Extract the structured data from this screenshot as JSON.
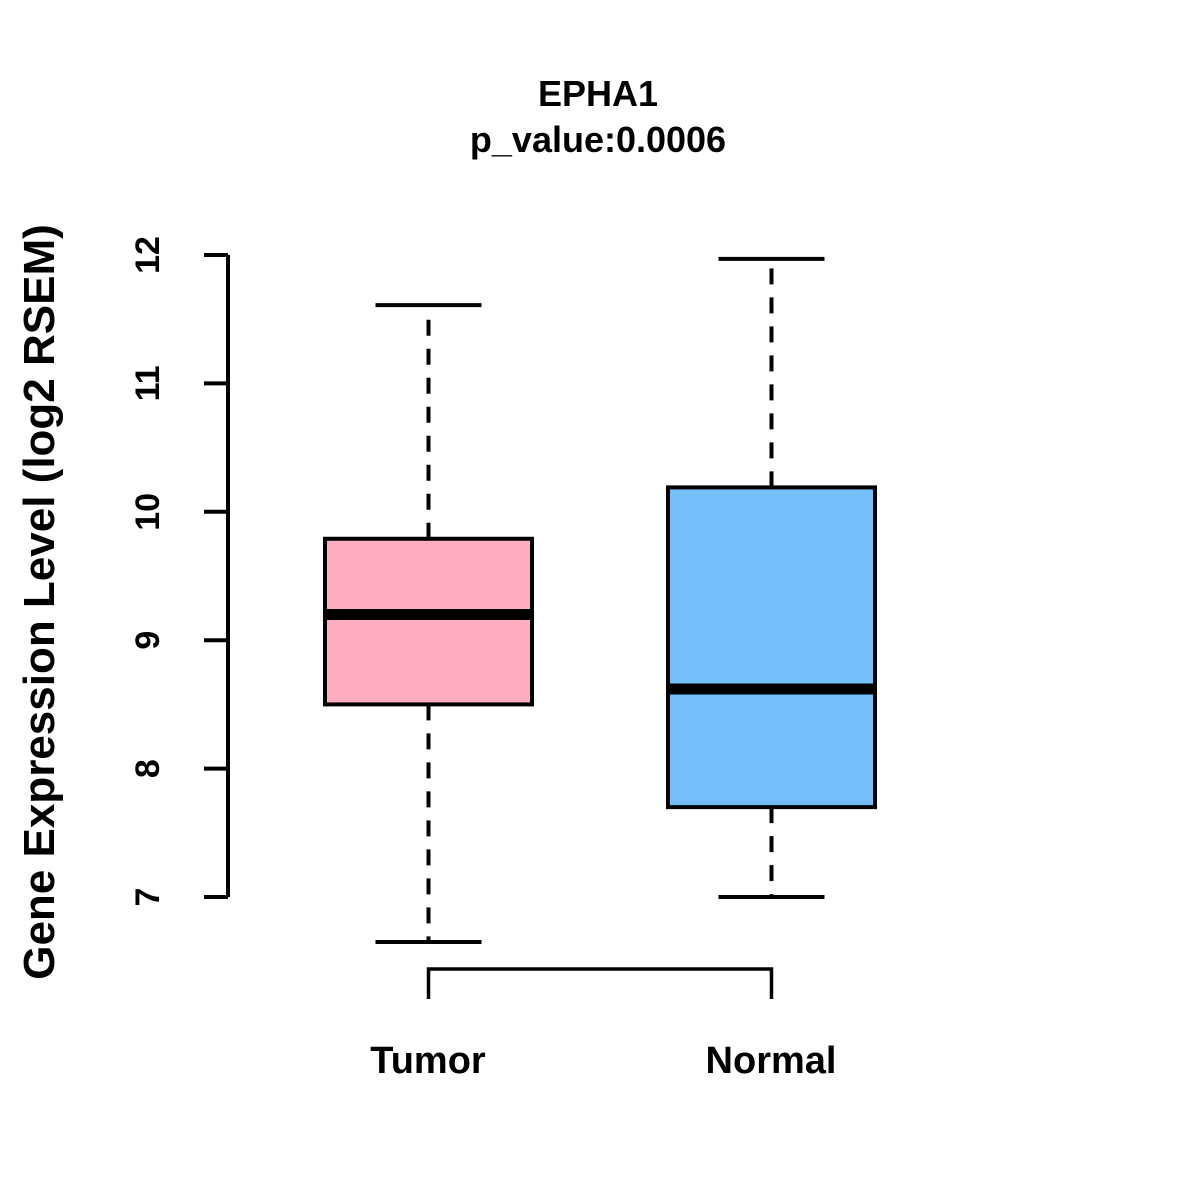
{
  "chart_data": {
    "type": "boxplot",
    "title": "EPHA1",
    "subtitle": "p_value:0.0006",
    "ylabel": "Gene Expression Level (log2 RSEM)",
    "xlabel": "",
    "ylim": [
      7,
      12
    ],
    "yticks": [
      "7",
      "8",
      "9",
      "10",
      "11",
      "12"
    ],
    "categories": [
      "Tumor",
      "Normal"
    ],
    "grid": "off",
    "groups": [
      {
        "label": "Tumor",
        "color": "#FFAEC1",
        "whisker_low": 6.65,
        "q1": 8.5,
        "median": 9.2,
        "q3": 9.79,
        "whisker_high": 11.61
      },
      {
        "label": "Normal",
        "color": "#74BFF7",
        "whisker_low": 7.0,
        "q1": 7.7,
        "median": 8.62,
        "q3": 10.19,
        "whisker_high": 11.97
      }
    ],
    "comparison_bracket": {
      "from": "Tumor",
      "to": "Normal"
    },
    "colors": {
      "box_border": "#000000",
      "axis": "#000000",
      "text": "#000000",
      "background": "#FFFFFF"
    }
  }
}
